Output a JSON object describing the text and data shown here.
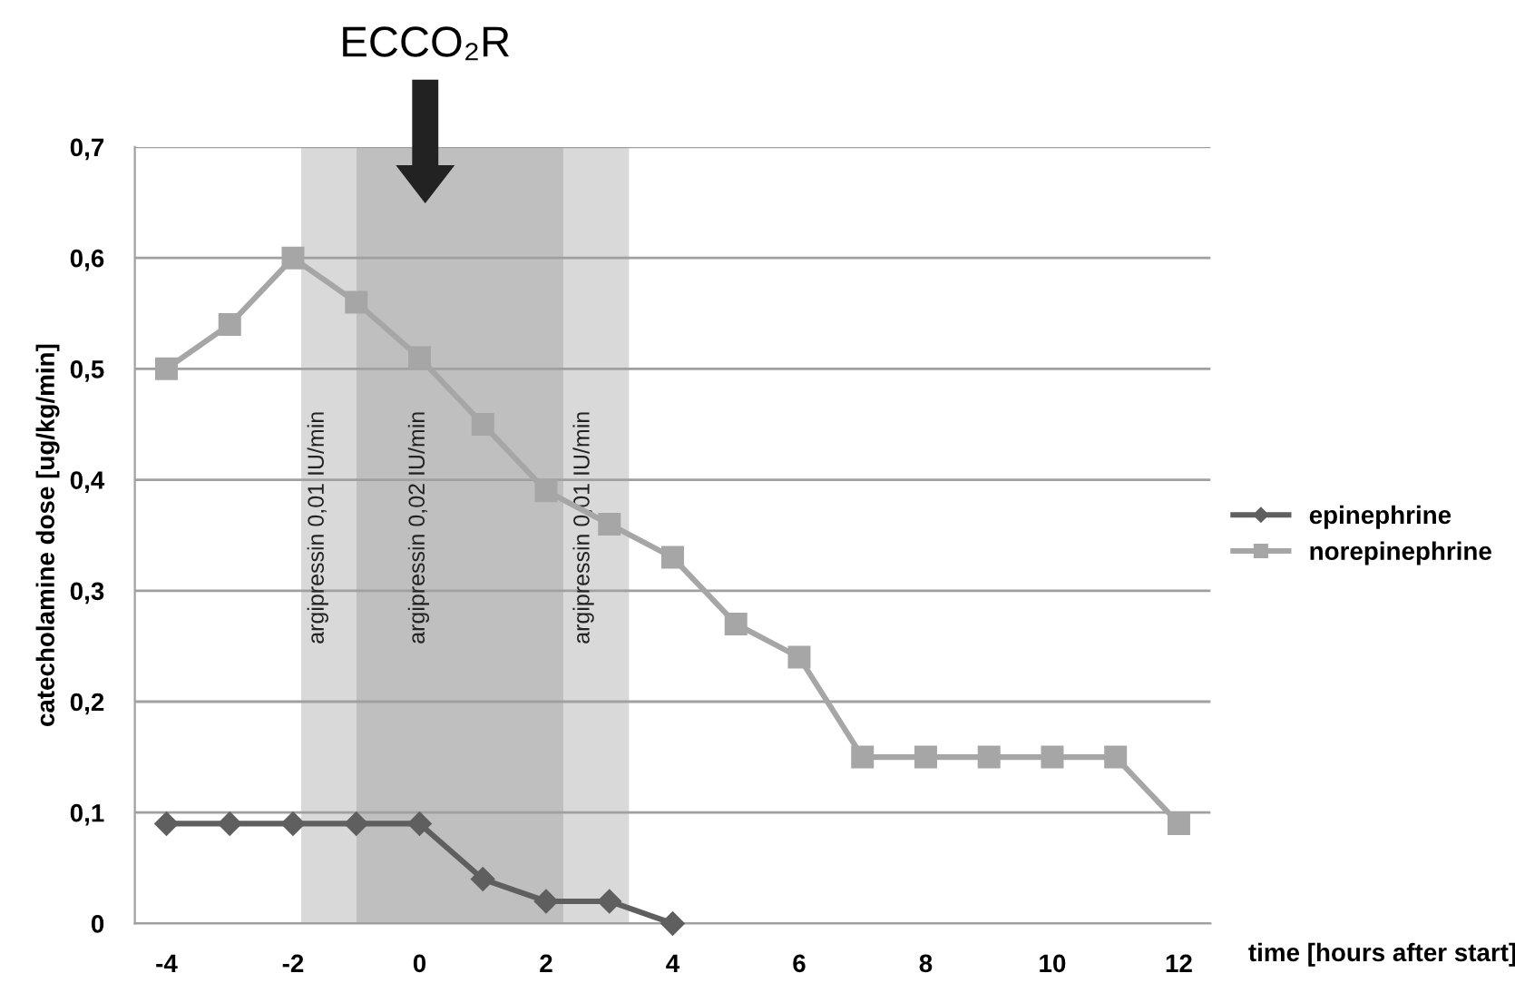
{
  "chart_data": {
    "type": "line",
    "annotations": [
      "ECCO₂R"
    ],
    "xlabel": "time [hours after start]",
    "ylabel": "catecholamine dose [ug/kg/min]",
    "series": [
      {
        "name": "epinephrine",
        "color": "#5f5f5f",
        "marker": "diamond",
        "x": [
          -4,
          -3,
          -2,
          -1,
          0,
          1,
          2,
          3,
          4
        ],
        "values": [
          0.09,
          0.09,
          0.09,
          0.09,
          0.09,
          0.04,
          0.02,
          0.02,
          0
        ]
      },
      {
        "name": "norepinephrine",
        "color": "#a6a6a6",
        "marker": "square",
        "x": [
          -4,
          -3,
          -2,
          -1,
          0,
          1,
          2,
          3,
          4,
          5,
          6,
          7,
          8,
          9,
          10,
          11,
          12
        ],
        "values": [
          0.5,
          0.54,
          0.6,
          0.56,
          0.51,
          0.45,
          0.39,
          0.36,
          0.33,
          0.27,
          0.24,
          0.15,
          0.15,
          0.15,
          0.15,
          0.15,
          0.09
        ]
      }
    ],
    "bands": [
      {
        "axis": "x",
        "from": -1.87,
        "to": -1,
        "label": "argipressin 0,01 IU/min",
        "color": "#d9d9d9"
      },
      {
        "axis": "x",
        "from": -1,
        "to": 2.28,
        "label": "argipressin 0,02 IU/min",
        "color": "#bfbfbf"
      },
      {
        "axis": "x",
        "from": 2.28,
        "to": 3.31,
        "label": "argipressin 0,01 IU/min",
        "color": "#d9d9d9"
      }
    ],
    "xlim": [
      -4.5,
      12.5
    ],
    "xticks": [
      -4,
      -2,
      0,
      2,
      4,
      6,
      8,
      10,
      12
    ],
    "ylim": [
      0,
      0.7
    ],
    "yticks": [
      {
        "value": 0,
        "label": "0"
      },
      {
        "value": 0.1,
        "label": "0,1"
      },
      {
        "value": 0.2,
        "label": "0,2"
      },
      {
        "value": 0.3,
        "label": "0,3"
      },
      {
        "value": 0.4,
        "label": "0,4"
      },
      {
        "value": 0.5,
        "label": "0,5"
      },
      {
        "value": 0.6,
        "label": "0,6"
      },
      {
        "value": 0.7,
        "label": "0,7"
      }
    ],
    "grid": "y",
    "legend": "right",
    "line_style": "solid"
  }
}
